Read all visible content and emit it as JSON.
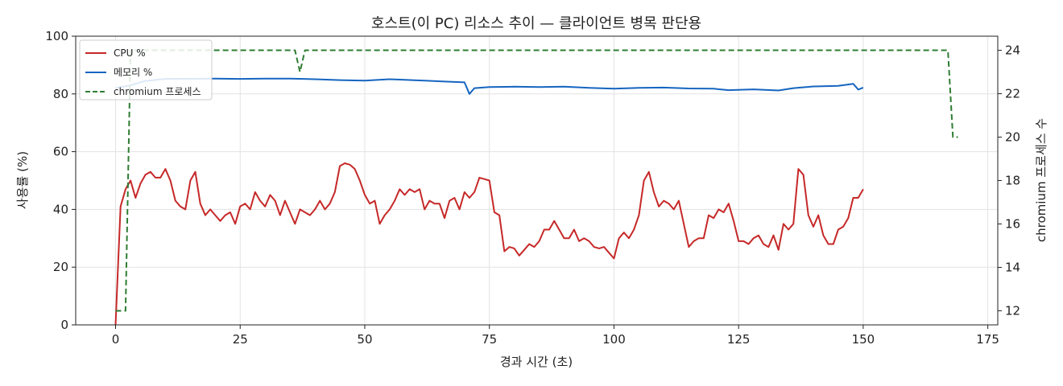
{
  "chart_data": {
    "type": "line",
    "title": "호스트(이 PC) 리소스 추이 — 클라이언트 병목 판단용",
    "xlabel": "경과 시간 (초)",
    "ylabel": "사용률 (%)",
    "y2label": "chromium 프로세스 수",
    "xlim": [
      -8,
      177
    ],
    "ylim": [
      0,
      100
    ],
    "y2lim": [
      11.35,
      24.65
    ],
    "xticks": [
      0,
      25,
      50,
      75,
      100,
      125,
      150,
      175
    ],
    "yticks": [
      0,
      20,
      40,
      60,
      80,
      100
    ],
    "y2ticks": [
      12,
      14,
      16,
      18,
      20,
      22,
      24
    ],
    "grid": true,
    "legend_position": "top-left",
    "series": [
      {
        "name": "CPU %",
        "axis": "left",
        "color": "#c62828",
        "style": "solid",
        "points": [
          [
            0,
            0
          ],
          [
            1,
            41
          ],
          [
            2,
            47
          ],
          [
            3,
            50
          ],
          [
            4,
            44
          ],
          [
            5,
            49
          ],
          [
            6,
            52
          ],
          [
            7,
            53
          ],
          [
            8,
            51
          ],
          [
            9,
            51
          ],
          [
            10,
            54
          ],
          [
            11,
            50
          ],
          [
            12,
            43
          ],
          [
            13,
            41
          ],
          [
            14,
            40
          ],
          [
            15,
            50
          ],
          [
            16,
            53
          ],
          [
            17,
            42
          ],
          [
            18,
            38
          ],
          [
            19,
            40
          ],
          [
            20,
            38
          ],
          [
            21,
            36
          ],
          [
            22,
            38
          ],
          [
            23,
            39
          ],
          [
            24,
            35
          ],
          [
            25,
            41
          ],
          [
            26,
            42
          ],
          [
            27,
            40
          ],
          [
            28,
            46
          ],
          [
            29,
            43
          ],
          [
            30,
            41
          ],
          [
            31,
            45
          ],
          [
            32,
            43
          ],
          [
            33,
            38
          ],
          [
            34,
            43
          ],
          [
            35,
            39
          ],
          [
            36,
            35
          ],
          [
            37,
            40
          ],
          [
            38,
            39
          ],
          [
            39,
            38
          ],
          [
            40,
            40
          ],
          [
            41,
            43
          ],
          [
            42,
            40
          ],
          [
            43,
            42
          ],
          [
            44,
            46
          ],
          [
            45,
            55
          ],
          [
            46,
            56
          ],
          [
            47,
            55.5
          ],
          [
            48,
            54
          ],
          [
            49,
            50
          ],
          [
            50,
            45
          ],
          [
            51,
            42
          ],
          [
            52,
            43
          ],
          [
            53,
            35
          ],
          [
            54,
            38
          ],
          [
            55,
            40
          ],
          [
            56,
            43
          ],
          [
            57,
            47
          ],
          [
            58,
            45
          ],
          [
            59,
            47
          ],
          [
            60,
            46
          ],
          [
            61,
            47
          ],
          [
            62,
            40
          ],
          [
            63,
            43
          ],
          [
            64,
            42
          ],
          [
            65,
            42
          ],
          [
            66,
            37
          ],
          [
            67,
            43
          ],
          [
            68,
            44
          ],
          [
            69,
            40
          ],
          [
            70,
            46
          ],
          [
            71,
            44
          ],
          [
            72,
            46
          ],
          [
            73,
            51
          ],
          [
            74,
            50.5
          ],
          [
            75,
            50
          ],
          [
            76,
            39
          ],
          [
            77,
            38
          ],
          [
            78,
            25.5
          ],
          [
            79,
            27
          ],
          [
            80,
            26.5
          ],
          [
            81,
            24
          ],
          [
            82,
            26
          ],
          [
            83,
            28
          ],
          [
            84,
            27
          ],
          [
            85,
            29
          ],
          [
            86,
            33
          ],
          [
            87,
            33
          ],
          [
            88,
            36
          ],
          [
            89,
            33
          ],
          [
            90,
            30
          ],
          [
            91,
            30
          ],
          [
            92,
            33
          ],
          [
            93,
            29
          ],
          [
            94,
            30
          ],
          [
            95,
            29
          ],
          [
            96,
            27
          ],
          [
            97,
            26.5
          ],
          [
            98,
            27
          ],
          [
            99,
            25
          ],
          [
            100,
            23
          ],
          [
            101,
            30
          ],
          [
            102,
            32
          ],
          [
            103,
            30
          ],
          [
            104,
            33
          ],
          [
            105,
            38
          ],
          [
            106,
            50
          ],
          [
            107,
            53
          ],
          [
            108,
            46
          ],
          [
            109,
            41
          ],
          [
            110,
            43
          ],
          [
            111,
            42
          ],
          [
            112,
            40
          ],
          [
            113,
            43
          ],
          [
            114,
            35
          ],
          [
            115,
            27
          ],
          [
            116,
            29
          ],
          [
            117,
            30
          ],
          [
            118,
            30
          ],
          [
            119,
            38
          ],
          [
            120,
            37
          ],
          [
            121,
            40
          ],
          [
            122,
            39
          ],
          [
            123,
            42
          ],
          [
            124,
            36
          ],
          [
            125,
            29
          ],
          [
            126,
            29
          ],
          [
            127,
            28
          ],
          [
            128,
            30
          ],
          [
            129,
            31
          ],
          [
            130,
            28
          ],
          [
            131,
            27
          ],
          [
            132,
            31
          ],
          [
            133,
            26
          ],
          [
            134,
            35
          ],
          [
            135,
            33
          ],
          [
            136,
            35
          ],
          [
            137,
            54
          ],
          [
            138,
            52
          ],
          [
            139,
            38
          ],
          [
            140,
            34
          ],
          [
            141,
            38
          ],
          [
            142,
            31
          ],
          [
            143,
            28
          ],
          [
            144,
            28
          ],
          [
            145,
            33
          ],
          [
            146,
            34
          ],
          [
            147,
            37
          ],
          [
            148,
            44
          ],
          [
            149,
            44
          ],
          [
            150,
            47
          ]
        ]
      },
      {
        "name": "메모리 %",
        "axis": "left",
        "color": "#1565c0",
        "style": "solid",
        "points": [
          [
            0,
            82
          ],
          [
            3,
            83
          ],
          [
            6,
            84.5
          ],
          [
            10,
            85.2
          ],
          [
            20,
            85.3
          ],
          [
            25,
            85.2
          ],
          [
            30,
            85.3
          ],
          [
            35,
            85.3
          ],
          [
            40,
            85.1
          ],
          [
            45,
            84.8
          ],
          [
            50,
            84.6
          ],
          [
            55,
            85.1
          ],
          [
            58,
            84.9
          ],
          [
            62,
            84.6
          ],
          [
            66,
            84.3
          ],
          [
            70,
            84
          ],
          [
            71,
            80
          ],
          [
            72,
            82
          ],
          [
            75,
            82.4
          ],
          [
            80,
            82.5
          ],
          [
            85,
            82.4
          ],
          [
            90,
            82.5
          ],
          [
            95,
            82.1
          ],
          [
            100,
            81.8
          ],
          [
            105,
            82.1
          ],
          [
            110,
            82.2
          ],
          [
            115,
            81.9
          ],
          [
            120,
            81.8
          ],
          [
            123,
            81.3
          ],
          [
            128,
            81.6
          ],
          [
            133,
            81.2
          ],
          [
            136,
            82
          ],
          [
            140,
            82.6
          ],
          [
            145,
            82.8
          ],
          [
            148,
            83.5
          ],
          [
            149,
            81.5
          ],
          [
            150,
            82.2
          ]
        ]
      },
      {
        "name": "chromium 프로세스",
        "axis": "right",
        "color": "#2e7d32",
        "style": "dashed",
        "points": [
          [
            0,
            12
          ],
          [
            2,
            12
          ],
          [
            3,
            24
          ],
          [
            36,
            24
          ],
          [
            37,
            23
          ],
          [
            38,
            24
          ],
          [
            167,
            24
          ],
          [
            168,
            20
          ],
          [
            169,
            20
          ]
        ]
      }
    ]
  }
}
